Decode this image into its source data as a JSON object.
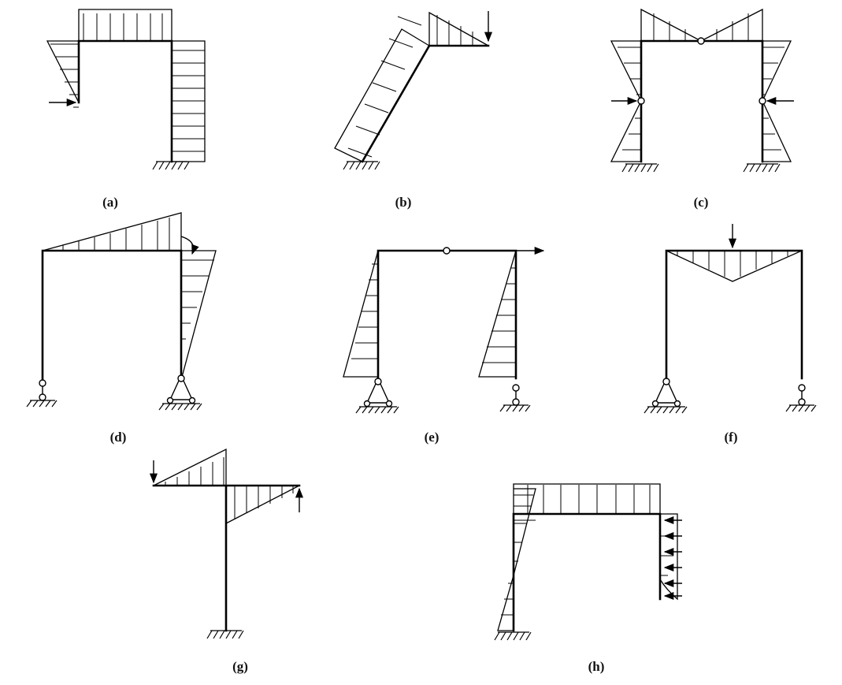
{
  "panels": [
    {
      "id": "a",
      "label": "(a)"
    },
    {
      "id": "b",
      "label": "(b)"
    },
    {
      "id": "c",
      "label": "(c)"
    },
    {
      "id": "d",
      "label": "(d)"
    },
    {
      "id": "e",
      "label": "(e)"
    },
    {
      "id": "f",
      "label": "(f)"
    },
    {
      "id": "g",
      "label": "(g)"
    },
    {
      "id": "h",
      "label": "(h)"
    }
  ]
}
